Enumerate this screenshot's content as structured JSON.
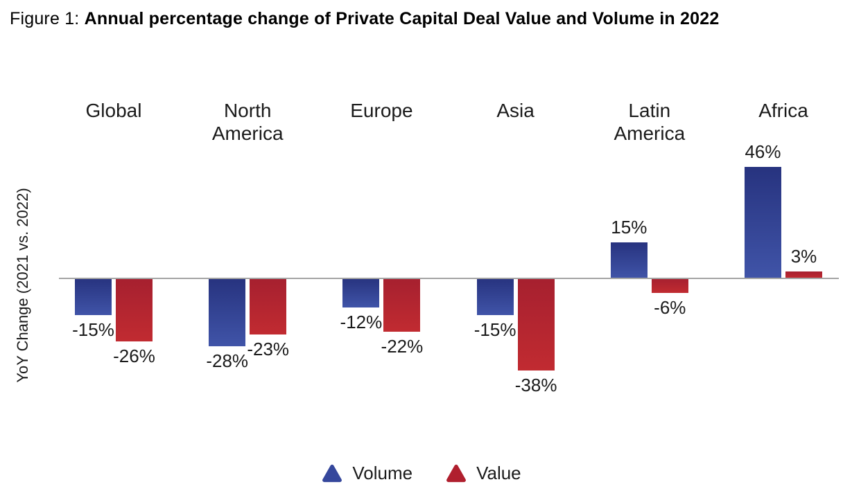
{
  "figure": {
    "prefix": "Figure 1: ",
    "title": "Annual percentage change of Private Capital Deal Value and Volume in 2022"
  },
  "chart": {
    "ylabel": "YoY Change (2021 vs. 2022)"
  },
  "legend": {
    "volume_label": "Volume",
    "value_label": "Value"
  },
  "colors": {
    "volume_bar_top": "#27337f",
    "volume_bar_bottom": "#4054a8",
    "value_bar_top": "#a6202f",
    "value_bar_bottom": "#c12b31",
    "legend_volume": "#35479c",
    "legend_value": "#b01f2e",
    "axis_line": "#a3a3a3",
    "text": "#1a1a1a"
  },
  "chart_data": {
    "type": "bar",
    "title": "Annual percentage change of Private Capital Deal Value and Volume in 2022",
    "categories": [
      "Global",
      "North America",
      "Europe",
      "Asia",
      "Latin America",
      "Africa"
    ],
    "series": [
      {
        "name": "Volume",
        "values": [
          -15,
          -28,
          -12,
          -15,
          15,
          46
        ]
      },
      {
        "name": "Value",
        "values": [
          -26,
          -23,
          -22,
          -38,
          -6,
          3
        ]
      }
    ],
    "value_suffix": "%",
    "xlabel": "",
    "ylabel": "YoY Change (2021 vs. 2022)",
    "ylim": [
      -38,
      46
    ],
    "baseline": 0,
    "grid": false,
    "legend_position": "bottom",
    "bar_value_labels": true
  }
}
